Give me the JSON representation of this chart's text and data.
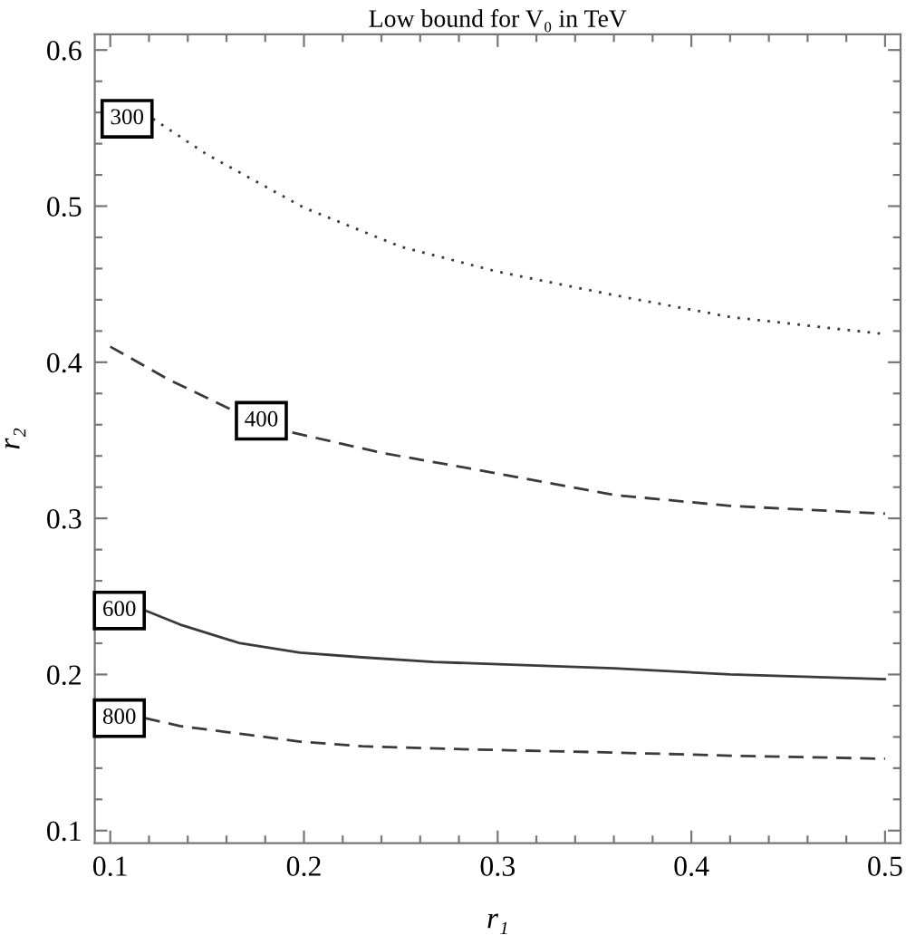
{
  "chart_data": {
    "type": "line",
    "title": "Low bound for V₀ in TeV",
    "xlabel": "r₁",
    "ylabel": "r₂",
    "xlim": [
      0.092,
      0.508
    ],
    "ylim": [
      0.092,
      0.61
    ],
    "xticks": [
      0.1,
      0.2,
      0.3,
      0.4,
      0.5
    ],
    "yticks": [
      0.1,
      0.2,
      0.3,
      0.4,
      0.5,
      0.6
    ],
    "series": [
      {
        "name": "300",
        "color": "#3a3a3a",
        "line_style": "dotted",
        "x": [
          0.122,
          0.15,
          0.2,
          0.25,
          0.3,
          0.36,
          0.42,
          0.5
        ],
        "values": [
          0.556,
          0.533,
          0.499,
          0.474,
          0.458,
          0.443,
          0.429,
          0.418
        ]
      },
      {
        "name": "400",
        "color": "#3a3a3a",
        "line_style": "dashed",
        "x": [
          0.1,
          0.13,
          0.162,
          0.178,
          0.194,
          0.24,
          0.29,
          0.36,
          0.42,
          0.5
        ],
        "values": [
          0.41,
          0.389,
          0.37,
          null,
          0.355,
          0.342,
          0.331,
          0.315,
          0.308,
          0.303
        ]
      },
      {
        "name": "600",
        "color": "#3a3a3a",
        "line_style": "solid",
        "x": [
          0.118,
          0.136,
          0.167,
          0.198,
          0.23,
          0.267,
          0.36,
          0.42,
          0.5
        ],
        "values": [
          0.241,
          0.232,
          0.22,
          0.214,
          0.211,
          0.208,
          0.204,
          0.2,
          0.197
        ]
      },
      {
        "name": "800",
        "color": "#3a3a3a",
        "line_style": "dashed",
        "x": [
          0.118,
          0.136,
          0.167,
          0.198,
          0.23,
          0.286,
          0.36,
          0.42,
          0.5
        ],
        "values": [
          0.172,
          0.167,
          0.162,
          0.157,
          0.154,
          0.152,
          0.15,
          0.148,
          0.146
        ]
      }
    ]
  }
}
